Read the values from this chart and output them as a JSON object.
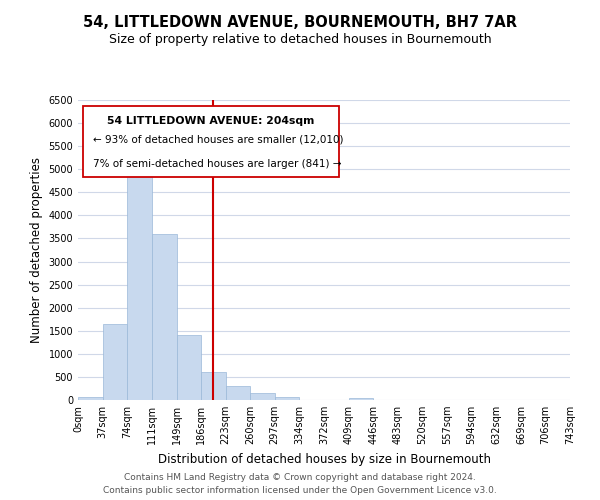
{
  "title": "54, LITTLEDOWN AVENUE, BOURNEMOUTH, BH7 7AR",
  "subtitle": "Size of property relative to detached houses in Bournemouth",
  "xlabel": "Distribution of detached houses by size in Bournemouth",
  "ylabel": "Number of detached properties",
  "bar_color": "#c8d9ee",
  "bar_edge_color": "#9ab8d8",
  "bin_edges": [
    0,
    37,
    74,
    111,
    149,
    186,
    223,
    260,
    297,
    334,
    372,
    409,
    446,
    483,
    520,
    557,
    594,
    632,
    669,
    706,
    743
  ],
  "bin_labels": [
    "0sqm",
    "37sqm",
    "74sqm",
    "111sqm",
    "149sqm",
    "186sqm",
    "223sqm",
    "260sqm",
    "297sqm",
    "334sqm",
    "372sqm",
    "409sqm",
    "446sqm",
    "483sqm",
    "520sqm",
    "557sqm",
    "594sqm",
    "632sqm",
    "669sqm",
    "706sqm",
    "743sqm"
  ],
  "bar_heights": [
    55,
    1650,
    5080,
    3590,
    1400,
    610,
    300,
    150,
    70,
    5,
    5,
    40,
    5,
    0,
    0,
    0,
    0,
    0,
    0,
    0
  ],
  "ylim": [
    0,
    6500
  ],
  "yticks": [
    0,
    500,
    1000,
    1500,
    2000,
    2500,
    3000,
    3500,
    4000,
    4500,
    5000,
    5500,
    6000,
    6500
  ],
  "property_line_x": 204,
  "property_line_color": "#cc0000",
  "annotation_box_text_line1": "54 LITTLEDOWN AVENUE: 204sqm",
  "annotation_box_text_line2": "← 93% of detached houses are smaller (12,010)",
  "annotation_box_text_line3": "7% of semi-detached houses are larger (841) →",
  "footer_line1": "Contains HM Land Registry data © Crown copyright and database right 2024.",
  "footer_line2": "Contains public sector information licensed under the Open Government Licence v3.0.",
  "background_color": "#ffffff",
  "grid_color": "#d0d8e8",
  "title_fontsize": 10.5,
  "subtitle_fontsize": 9,
  "axis_label_fontsize": 8.5,
  "tick_fontsize": 7,
  "footer_fontsize": 6.5
}
